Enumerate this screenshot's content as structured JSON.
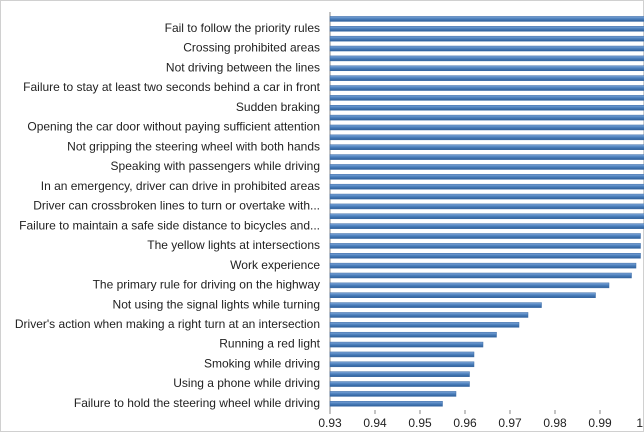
{
  "chart_data": {
    "type": "barh",
    "categories": [
      null,
      "Fail to follow the priority rules",
      null,
      "Crossing prohibited areas",
      null,
      "Not driving between the lines",
      null,
      "Failure to stay at least two seconds behind a car in front",
      null,
      "Sudden braking",
      null,
      "Opening the car door without paying sufficient attention",
      null,
      "Not gripping the steering wheel with both hands",
      null,
      "Speaking with passengers while driving",
      null,
      "In an emergency, driver can drive in prohibited areas",
      null,
      "Driver can crossbroken lines to turn or overtake with...",
      null,
      "Failure to maintain a safe side distance to bicycles and...",
      null,
      "The yellow  lights at intersections",
      null,
      "Work experience",
      null,
      "The primary rule for driving on the highway",
      null,
      "Not using the signal lights while turning",
      null,
      "Driver's action when making a right turn at an intersection",
      null,
      "Running a red light",
      null,
      "Smoking while driving",
      null,
      "Using a phone while driving",
      null,
      "Failure to hold the steering wheel while driving"
    ],
    "values": [
      1.0,
      1.0,
      1.0,
      1.0,
      1.0,
      1.0,
      1.0,
      1.0,
      1.0,
      1.0,
      1.0,
      1.0,
      1.0,
      1.0,
      1.0,
      1.0,
      1.0,
      1.0,
      1.0,
      1.0,
      1.0,
      1.0,
      0.999,
      0.999,
      0.999,
      0.998,
      0.997,
      0.992,
      0.989,
      0.977,
      0.974,
      0.972,
      0.967,
      0.964,
      0.962,
      0.962,
      0.961,
      0.961,
      0.958,
      0.955
    ],
    "color": "#4a7ebb",
    "xlim": [
      0.93,
      1.0
    ],
    "xticks": [
      0.93,
      0.94,
      0.95,
      0.96,
      0.97,
      0.98,
      0.99,
      1
    ]
  }
}
